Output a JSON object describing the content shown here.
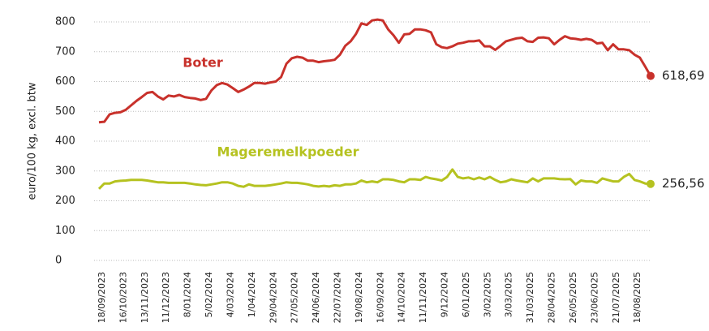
{
  "chart_data": {
    "type": "line",
    "y_label": "euro/100 kg, excl. btw",
    "categories": [
      "18/09/2023",
      null,
      null,
      null,
      "16/10/2023",
      null,
      null,
      null,
      "13/11/2023",
      null,
      null,
      null,
      "11/12/2023",
      null,
      null,
      null,
      "8/01/2024",
      null,
      null,
      null,
      "5/02/2024",
      null,
      null,
      null,
      "4/03/2024",
      null,
      null,
      null,
      "1/04/2024",
      null,
      null,
      null,
      "29/04/2024",
      null,
      null,
      null,
      "27/05/2024",
      null,
      null,
      null,
      "24/06/2024",
      null,
      null,
      null,
      "22/07/2024",
      null,
      null,
      null,
      "19/08/2024",
      null,
      null,
      null,
      "16/09/2024",
      null,
      null,
      null,
      "14/10/2024",
      null,
      null,
      null,
      "11/11/2024",
      null,
      null,
      null,
      "9/12/2024",
      null,
      null,
      null,
      "6/01/2025",
      null,
      null,
      null,
      "3/02/2025",
      null,
      null,
      null,
      "3/03/2025",
      null,
      null,
      null,
      "31/03/2025",
      null,
      null,
      null,
      "28/04/2025",
      null,
      null,
      null,
      "26/05/2025",
      null,
      null,
      null,
      "23/06/2025",
      null,
      null,
      null,
      "21/07/2025",
      null,
      null,
      null,
      "18/08/2025",
      null,
      null,
      null
    ],
    "series": [
      {
        "name": "Boter",
        "color": "#c8312b",
        "values": [
          463,
          465,
          490,
          495,
          497,
          505,
          520,
          535,
          548,
          562,
          565,
          550,
          540,
          553,
          550,
          555,
          548,
          545,
          543,
          538,
          542,
          570,
          588,
          595,
          590,
          578,
          565,
          573,
          583,
          595,
          595,
          593,
          597,
          600,
          615,
          660,
          678,
          683,
          680,
          670,
          670,
          665,
          668,
          670,
          673,
          690,
          720,
          735,
          760,
          795,
          790,
          805,
          808,
          805,
          775,
          755,
          730,
          758,
          760,
          775,
          775,
          772,
          765,
          725,
          715,
          712,
          718,
          727,
          730,
          735,
          735,
          738,
          718,
          718,
          706,
          720,
          735,
          740,
          745,
          747,
          735,
          733,
          747,
          748,
          745,
          725,
          740,
          752,
          745,
          743,
          740,
          743,
          740,
          728,
          730,
          705,
          725,
          708,
          708,
          705,
          690,
          680,
          650,
          618.69
        ],
        "value_labels": [
          null,
          null,
          null,
          null,
          null,
          null,
          null,
          null,
          null,
          null,
          null,
          null,
          null,
          null,
          null,
          null,
          null,
          null,
          null,
          null,
          null,
          null,
          null,
          null,
          null,
          null,
          null,
          null,
          null,
          null,
          null,
          null,
          null,
          null,
          null,
          null,
          null,
          null,
          null,
          null,
          null,
          null,
          null,
          null,
          null,
          null,
          null,
          null,
          null,
          null,
          null,
          null,
          null,
          null,
          null,
          null,
          null,
          null,
          null,
          null,
          null,
          null,
          null,
          null,
          null,
          null,
          null,
          null,
          null,
          null,
          null,
          null,
          null,
          null,
          null,
          null,
          null,
          null,
          null,
          null,
          null,
          null,
          null,
          null,
          null,
          null,
          null,
          null,
          null,
          null,
          null,
          null,
          null,
          null,
          null,
          null,
          null,
          null,
          null,
          null,
          null,
          null,
          null,
          "618,69"
        ]
      },
      {
        "name": "Mageremelkpoeder",
        "color": "#b5c220",
        "values": [
          240,
          258,
          258,
          265,
          267,
          268,
          270,
          270,
          270,
          268,
          265,
          262,
          262,
          260,
          260,
          260,
          260,
          258,
          255,
          253,
          252,
          255,
          258,
          262,
          262,
          258,
          250,
          247,
          255,
          250,
          250,
          250,
          252,
          255,
          258,
          262,
          260,
          260,
          258,
          255,
          250,
          248,
          250,
          248,
          252,
          250,
          255,
          255,
          258,
          268,
          262,
          265,
          262,
          272,
          272,
          270,
          265,
          262,
          272,
          272,
          270,
          280,
          275,
          272,
          268,
          280,
          305,
          280,
          275,
          278,
          272,
          278,
          272,
          280,
          270,
          262,
          265,
          272,
          268,
          265,
          262,
          275,
          265,
          275,
          275,
          275,
          273,
          272,
          273,
          255,
          268,
          265,
          265,
          260,
          275,
          270,
          265,
          265,
          280,
          290,
          270,
          265,
          258,
          256.56
        ],
        "value_labels": [
          null,
          null,
          null,
          null,
          null,
          null,
          null,
          null,
          null,
          null,
          null,
          null,
          null,
          null,
          null,
          null,
          null,
          null,
          null,
          null,
          null,
          null,
          null,
          null,
          null,
          null,
          null,
          null,
          null,
          null,
          null,
          null,
          null,
          null,
          null,
          null,
          null,
          null,
          null,
          null,
          null,
          null,
          null,
          null,
          null,
          null,
          null,
          null,
          null,
          null,
          null,
          null,
          null,
          null,
          null,
          null,
          null,
          null,
          null,
          null,
          null,
          null,
          null,
          null,
          null,
          null,
          null,
          null,
          null,
          null,
          null,
          null,
          null,
          null,
          null,
          null,
          null,
          null,
          null,
          null,
          null,
          null,
          null,
          null,
          null,
          null,
          null,
          null,
          null,
          null,
          null,
          null,
          null,
          null,
          null,
          null,
          null,
          null,
          null,
          null,
          null,
          null,
          null,
          "256,56"
        ]
      }
    ],
    "ylim": [
      0,
      800
    ],
    "yticks": [
      0,
      100,
      200,
      300,
      400,
      500,
      600,
      700,
      800
    ],
    "grid": true
  }
}
